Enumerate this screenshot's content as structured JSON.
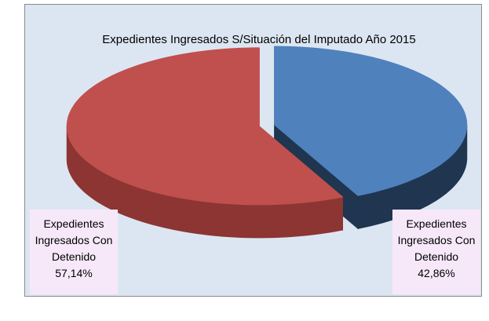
{
  "chart_data": {
    "type": "pie",
    "title": "Expedientes Ingresados S/Situación del Imputado Año 2015",
    "categories": [
      "Expedientes Ingresados Con Detenido",
      "Expedientes Ingresados Con Detenido"
    ],
    "values": [
      42.86,
      57.14
    ],
    "value_labels": [
      "42,86%",
      "57,14%"
    ],
    "colors": [
      "#4f81bd",
      "#c0504d"
    ],
    "side_colors": [
      "#1f3550",
      "#8c3533"
    ],
    "background_text": [
      "Ex",
      "Ex"
    ]
  }
}
